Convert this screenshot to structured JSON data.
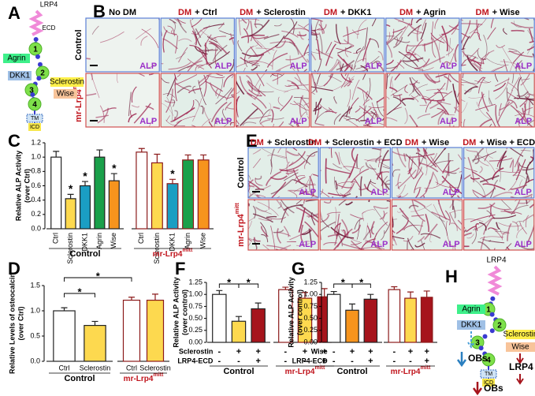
{
  "panel_letters": [
    "A",
    "B",
    "C",
    "D",
    "E",
    "F",
    "G",
    "H"
  ],
  "panel_a": {
    "title": "LRP4",
    "ecd": "ECD",
    "domains": [
      "1",
      "2",
      "3",
      "4"
    ],
    "tm": "TM",
    "icd": "ICD",
    "ligands": [
      "Agrin",
      "DKK1",
      "Sclerostin",
      "Wise"
    ]
  },
  "panel_b": {
    "columns": [
      {
        "text": "No DM"
      },
      {
        "dm": "DM",
        "rest": "+ Ctrl"
      },
      {
        "dm": "DM",
        "rest": "+ Sclerostin"
      },
      {
        "dm": "DM",
        "rest": "+ DKK1"
      },
      {
        "dm": "DM",
        "rest": "+ Agrin"
      },
      {
        "dm": "DM",
        "rest": "+ Wise"
      }
    ],
    "rows": [
      {
        "text": "Control"
      },
      {
        "base": "mr-Lrp4",
        "sup": "mitt"
      }
    ],
    "stain": "ALP"
  },
  "panel_e": {
    "columns": [
      {
        "dm": "DM",
        "rest": "+ Sclerostin"
      },
      {
        "dm": "DM",
        "rest": "+ Sclerostin + ECD"
      },
      {
        "dm": "DM",
        "rest": "+ Wise"
      },
      {
        "dm": "DM",
        "rest": "+ Wise + ECD"
      }
    ],
    "rows": [
      {
        "text": "Control"
      },
      {
        "base": "mr-Lrp4",
        "sup": "mitt"
      }
    ],
    "stain": "ALP"
  },
  "panel_h": {
    "title": "LRP4",
    "domains": [
      "1",
      "2",
      "3",
      "4"
    ],
    "tm": "TM",
    "icd": "ICD",
    "ligands": [
      "Agrin",
      "DKK1",
      "Sclerostin",
      "Wise"
    ],
    "outcomes": [
      "OBs",
      "LRP4",
      "OBs"
    ]
  },
  "chart_data": [
    {
      "type": "bar",
      "ylabel": [
        "Relative ALP Activity",
        "(over Ctrl)"
      ],
      "ylim": [
        0,
        1.2
      ],
      "yticks": [
        {
          "value": 0,
          "label": "0.0"
        },
        0.2,
        0.4,
        0.6,
        0.8,
        {
          "value": 1,
          "label": "1.0"
        },
        1.2
      ],
      "groups": [
        {
          "name": "Control",
          "edge": "#222222",
          "categories": [
            "Ctrl",
            "Sclerostin",
            "DKK1",
            "Agrin",
            "Wise"
          ],
          "values": [
            1.0,
            0.42,
            0.6,
            1.0,
            0.67
          ],
          "errors": [
            0.08,
            0.06,
            0.06,
            0.1,
            0.1
          ],
          "colors": [
            "#ffffff",
            "#fdd94f",
            "#1a9ec3",
            "#1aa04a",
            "#f7941d"
          ],
          "stars": [
            null,
            "*",
            "*",
            null,
            "*"
          ]
        },
        {
          "name": {
            "base": "mr-Lrp4",
            "sup": "mitt"
          },
          "edge": "#8b1a1a",
          "categories": [
            "Ctrl",
            "Sclerostin",
            "DKK1",
            "Agrin",
            "Wise"
          ],
          "values": [
            1.07,
            0.92,
            0.63,
            0.96,
            0.96
          ],
          "errors": [
            0.05,
            0.12,
            0.06,
            0.07,
            0.07
          ],
          "colors": [
            "#ffffff",
            "#fdd94f",
            "#1a9ec3",
            "#1aa04a",
            "#f7941d"
          ],
          "stars": [
            null,
            null,
            "*",
            null,
            null
          ]
        }
      ]
    },
    {
      "type": "bar",
      "ylabel": [
        "Relative Levels of osteocalcin",
        "(over Ctrl)"
      ],
      "ylim": [
        0,
        1.5
      ],
      "yticks": [
        {
          "value": 0,
          "label": "0.0"
        },
        0.5,
        {
          "value": 1,
          "label": "1.0"
        },
        1.5
      ],
      "significance": [
        "*",
        "*"
      ],
      "groups": [
        {
          "name": "Control",
          "edge": "#222222",
          "categories": [
            "Ctrl",
            "Sclerostin"
          ],
          "values": [
            1.0,
            0.71
          ],
          "errors": [
            0.06,
            0.08
          ],
          "colors": [
            "#ffffff",
            "#fdd94f"
          ]
        },
        {
          "name": {
            "base": "mr-Lrp4",
            "sup": "mitt"
          },
          "edge": "#8b1a1a",
          "categories": [
            "Ctrl",
            "Sclerostin"
          ],
          "values": [
            1.21,
            1.21
          ],
          "errors": [
            0.06,
            0.12
          ],
          "colors": [
            "#ffffff",
            "#fdd94f"
          ]
        }
      ]
    },
    {
      "type": "bar",
      "ylabel": [
        "Relative ALP Activity",
        "(over control)"
      ],
      "ylim": [
        0,
        1.25
      ],
      "yticks": [
        {
          "value": 0,
          "label": "0.00"
        },
        0.25,
        {
          "value": 0.5,
          "label": "0.50"
        },
        0.75,
        {
          "value": 1,
          "label": "1.00"
        },
        1.25
      ],
      "significance": [
        "*",
        "*"
      ],
      "conditions": [
        {
          "name": "Sclerostin",
          "signs": [
            "-",
            "+",
            "+",
            "-",
            "+",
            "+"
          ]
        },
        {
          "name": "LRP4-ECD",
          "signs": [
            "-",
            "-",
            "+",
            "-",
            "-",
            "+"
          ]
        }
      ],
      "groups": [
        {
          "name": "Control",
          "edge": "#222222",
          "values": [
            1.0,
            0.44,
            0.7
          ],
          "errors": [
            0.08,
            0.1,
            0.12
          ],
          "colors": [
            "#ffffff",
            "#fdd94f",
            "#a6141c"
          ]
        },
        {
          "name": {
            "base": "mr-Lrp4",
            "sup": "mitt"
          },
          "edge": "#8b1a1a",
          "values": [
            1.1,
            0.92,
            0.95
          ],
          "errors": [
            0.05,
            0.12,
            0.17
          ],
          "colors": [
            "#ffffff",
            "#fdd94f",
            "#a6141c"
          ]
        }
      ]
    },
    {
      "type": "bar",
      "ylabel": [
        "Relative ALP Activity",
        "(over control)"
      ],
      "ylim": [
        0,
        1.25
      ],
      "yticks": [
        {
          "value": 0,
          "label": "0.00"
        },
        0.25,
        {
          "value": 0.5,
          "label": "0.50"
        },
        0.75,
        {
          "value": 1,
          "label": "1.00"
        },
        1.25
      ],
      "significance": [
        "*",
        "*"
      ],
      "conditions": [
        {
          "name": "Wise",
          "signs": [
            "-",
            "+",
            "+",
            "-",
            "+",
            "+"
          ]
        },
        {
          "name": "LRP4-ECD",
          "signs": [
            "-",
            "-",
            "+",
            "-",
            "-",
            "+"
          ]
        }
      ],
      "groups": [
        {
          "name": "Control",
          "edge": "#222222",
          "values": [
            1.0,
            0.67,
            0.9
          ],
          "errors": [
            0.06,
            0.13,
            0.1
          ],
          "colors": [
            "#ffffff",
            "#f7941d",
            "#a6141c"
          ]
        },
        {
          "name": {
            "base": "mr-Lrp4",
            "sup": "mitt"
          },
          "edge": "#8b1a1a",
          "values": [
            1.1,
            0.92,
            0.94
          ],
          "errors": [
            0.06,
            0.13,
            0.13
          ],
          "colors": [
            "#ffffff",
            "#fdd94f",
            "#a6141c"
          ]
        }
      ]
    }
  ]
}
